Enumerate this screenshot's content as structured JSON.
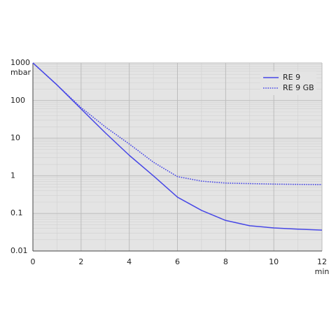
{
  "chart_data": {
    "type": "line",
    "y_label": "mbar",
    "x_label": "min",
    "x": [
      0,
      1,
      2,
      3,
      4,
      5,
      6,
      7,
      8,
      9,
      10,
      11,
      12
    ],
    "series": [
      {
        "name": "RE 9",
        "color": "#4747e6",
        "style": "solid",
        "values": [
          1000,
          260,
          60,
          14,
          3.5,
          1.0,
          0.27,
          0.12,
          0.065,
          0.047,
          0.041,
          0.038,
          0.036
        ]
      },
      {
        "name": "RE 9 GB",
        "color": "#4747e6",
        "style": "dotted",
        "values": [
          1000,
          260,
          65,
          20,
          7,
          2.3,
          0.95,
          0.72,
          0.64,
          0.62,
          0.6,
          0.59,
          0.58
        ]
      }
    ],
    "xlim": [
      0,
      12
    ],
    "xticks": [
      0,
      2,
      4,
      6,
      8,
      10,
      12
    ],
    "ylim": [
      0.01,
      1000
    ],
    "yticks": [
      0.01,
      0.1,
      1,
      10,
      100,
      1000
    ],
    "log_y": true,
    "grid": true,
    "legend": "upper right"
  }
}
